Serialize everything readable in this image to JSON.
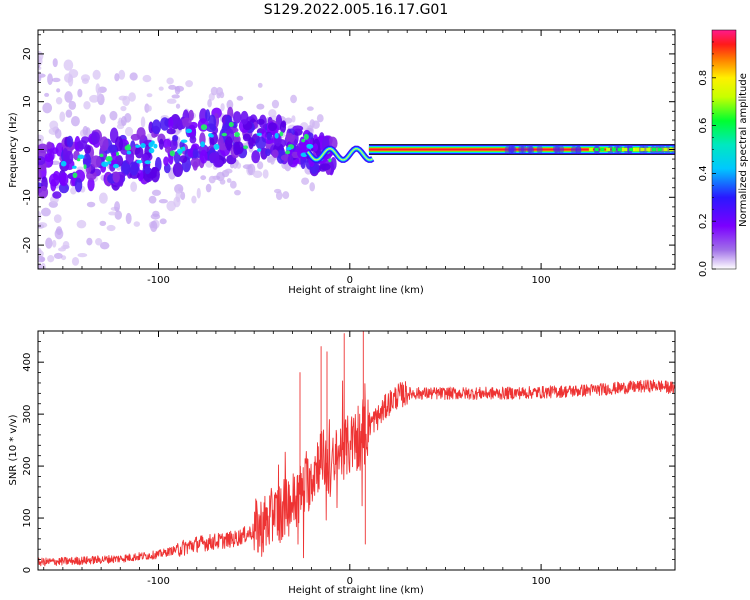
{
  "title": "S129.2022.005.16.17.G01",
  "chart_data": [
    {
      "type": "heatmap",
      "xlabel": "Height of straight line (km)",
      "ylabel": "Frequency (Hz)",
      "xlim": [
        -163,
        170
      ],
      "ylim": [
        -25,
        25
      ],
      "xticks": [
        -100,
        0,
        100
      ],
      "xtick_labels": [
        "-100",
        "0",
        "100"
      ],
      "yticks": [
        20,
        10,
        0,
        -10,
        -20
      ],
      "ytick_labels": [
        "20",
        "10",
        "0",
        "-10",
        "-20"
      ],
      "grid": false,
      "colorbar": {
        "label": "Normalized spectral amplitude",
        "range": [
          0,
          1
        ],
        "ticks": [
          0.0,
          0.2,
          0.4,
          0.6,
          0.8
        ],
        "tick_labels": [
          "0.0",
          "0.2",
          "0.4",
          "0.6",
          "0.8"
        ],
        "colors": [
          "#ffffff",
          "#8a2be2",
          "#3a10ff",
          "#00d8ff",
          "#00ff40",
          "#fff000",
          "#ff2a00",
          "#ff1a8c"
        ]
      },
      "ridge": {
        "x": [
          -163,
          -140,
          -120,
          -100,
          -80,
          -60,
          -40,
          -25,
          -15,
          0,
          10,
          170
        ],
        "y": [
          -5,
          -3,
          -2,
          0,
          2,
          3,
          2,
          1,
          -1,
          0,
          0,
          0
        ]
      },
      "tone": {
        "x_start": 10,
        "x_end": 170,
        "frequency": 0,
        "amplitude": 0.85
      }
    },
    {
      "type": "line",
      "xlabel": "Height of straight line (km)",
      "ylabel": "SNR (10 * v/v)",
      "xlim": [
        -163,
        170
      ],
      "ylim": [
        0,
        460
      ],
      "xticks": [
        -100,
        0,
        100
      ],
      "xtick_labels": [
        "-100",
        "0",
        "100"
      ],
      "yticks": [
        0,
        100,
        200,
        300,
        400
      ],
      "ytick_labels": [
        "0",
        "100",
        "200",
        "300",
        "400"
      ],
      "grid": false,
      "series": [
        {
          "color": "#ee3333",
          "x": [
            -163,
            -140,
            -120,
            -100,
            -90,
            -80,
            -70,
            -60,
            -50,
            -40,
            -30,
            -25,
            -20,
            -15,
            -10,
            -5,
            0,
            5,
            8,
            10,
            15,
            20,
            25,
            30,
            40,
            60,
            80,
            100,
            120,
            140,
            160,
            170
          ],
          "y": [
            15,
            18,
            22,
            30,
            40,
            50,
            55,
            60,
            75,
            100,
            130,
            150,
            180,
            220,
            190,
            230,
            240,
            250,
            260,
            280,
            295,
            320,
            335,
            340,
            340,
            340,
            340,
            342,
            345,
            350,
            355,
            350
          ],
          "spikes": [
            {
              "x": -26,
              "y": 380
            },
            {
              "x": -15,
              "y": 430
            },
            {
              "x": -12,
              "y": 420
            },
            {
              "x": -3,
              "y": 455
            },
            {
              "x": 7,
              "y": 460
            },
            {
              "x": 8,
              "y": 50
            }
          ]
        }
      ]
    }
  ]
}
